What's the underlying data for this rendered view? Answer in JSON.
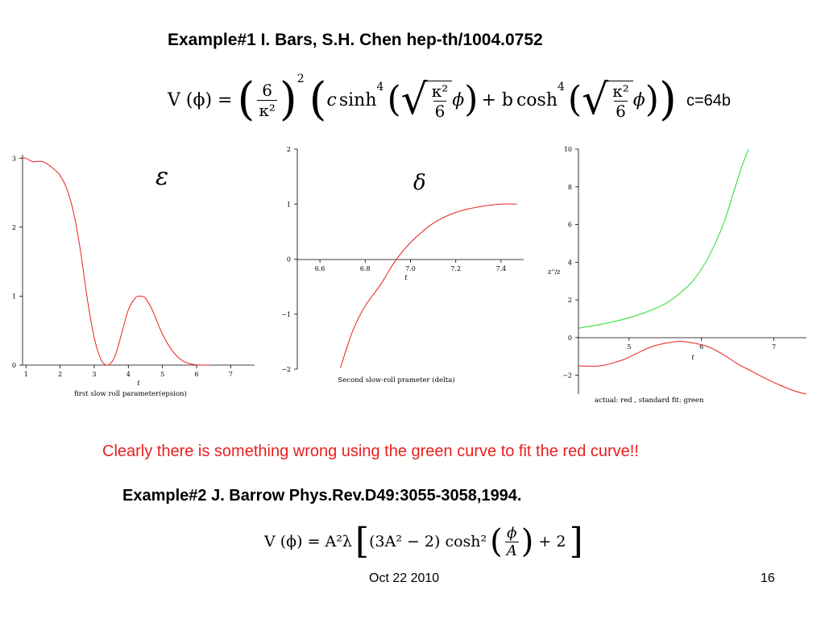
{
  "slide": {
    "heading1": "Example#1 I. Bars, S.H. Chen hep-th/1004.0752",
    "constant_note": "c=64b",
    "conclusion": "Clearly there is something wrong using the green curve to fit the red curve!!",
    "heading2": "Example#2 J. Barrow  Phys.Rev.D49:3055-3058,1994.",
    "footer_date": "Oct 22 2010",
    "page_number": "16"
  },
  "equation1": {
    "lhs": "V (ϕ) =",
    "six": "6",
    "kappa_sq": "κ²",
    "square": "2",
    "c": "c",
    "sinh": "sinh",
    "fourth": "4",
    "plus_b": "+ b",
    "cosh": "cosh",
    "phi": "ϕ"
  },
  "equation2": {
    "lhs": "V (ϕ) = A²λ",
    "inner": "(3A² − 2) cosh²",
    "phi": "ϕ",
    "A": "A",
    "plus": "+ 2"
  },
  "colors": {
    "curve_red": "#e8201e",
    "curve_green": "#22dd22",
    "axis": "#000000",
    "conclusion": "#e8201e"
  },
  "chart_data": [
    {
      "type": "line",
      "title": "ε",
      "xlabel": "t",
      "caption": "first slow roll parameter(epsion)",
      "xlim": [
        0.9,
        7.7
      ],
      "ylim": [
        0,
        3.05
      ],
      "xticks": [
        1,
        2,
        3,
        4,
        5,
        6,
        7
      ],
      "yticks": [
        0,
        1,
        2,
        3
      ],
      "grid": false,
      "series": [
        {
          "color": "#e8201e",
          "x": [
            0.9,
            1.0,
            1.2,
            1.5,
            1.8,
            2.0,
            2.2,
            2.4,
            2.6,
            2.8,
            3.0,
            3.2,
            3.4,
            3.6,
            3.8,
            4.0,
            4.2,
            4.35,
            4.5,
            4.7,
            5.0,
            5.3,
            5.6,
            5.9,
            6.2,
            6.4
          ],
          "y": [
            3.0,
            3.0,
            2.95,
            2.95,
            2.85,
            2.75,
            2.55,
            2.2,
            1.65,
            0.95,
            0.4,
            0.08,
            0.0,
            0.12,
            0.45,
            0.8,
            0.97,
            1.0,
            0.97,
            0.8,
            0.45,
            0.2,
            0.06,
            0.01,
            0.0,
            0.0
          ]
        }
      ]
    },
    {
      "type": "line",
      "title": "δ",
      "xlabel": "t",
      "caption": "Second slow-roll prameter (delta)",
      "xlim": [
        6.5,
        7.5
      ],
      "ylim": [
        -2,
        2
      ],
      "xticks": [
        6.6,
        6.8,
        7.0,
        7.2,
        7.4
      ],
      "xtick_labels": [
        "6.6",
        "6.8",
        "7.0",
        "7.2",
        "7.4"
      ],
      "yticks": [
        -2,
        -1,
        0,
        1,
        2
      ],
      "grid": false,
      "series": [
        {
          "color": "#e8201e",
          "x": [
            6.69,
            6.72,
            6.75,
            6.8,
            6.87,
            6.93,
            7.0,
            7.1,
            7.2,
            7.3,
            7.4,
            7.47
          ],
          "y": [
            -1.98,
            -1.6,
            -1.25,
            -0.85,
            -0.45,
            -0.05,
            0.3,
            0.65,
            0.85,
            0.95,
            1.0,
            1.0
          ]
        }
      ]
    },
    {
      "type": "line",
      "title": "",
      "xlabel": "t",
      "ylabel": "z''/z",
      "caption": "actual: red ,   standard fit: green",
      "xlim": [
        4.3,
        7.45
      ],
      "ylim": [
        -3,
        10
      ],
      "xticks": [
        5,
        6,
        7
      ],
      "yticks": [
        -2,
        0,
        2,
        4,
        6,
        8,
        10
      ],
      "grid": false,
      "series": [
        {
          "name": "actual",
          "color": "#e8201e",
          "x": [
            4.3,
            4.6,
            4.9,
            5.1,
            5.3,
            5.5,
            5.7,
            5.9,
            6.1,
            6.3,
            6.5,
            6.7,
            6.9,
            7.1,
            7.3,
            7.45
          ],
          "y": [
            -1.5,
            -1.5,
            -1.2,
            -0.85,
            -0.5,
            -0.3,
            -0.2,
            -0.3,
            -0.5,
            -0.9,
            -1.4,
            -1.8,
            -2.2,
            -2.55,
            -2.85,
            -3.0
          ]
        },
        {
          "name": "standard fit",
          "color": "#22dd22",
          "x": [
            4.3,
            4.6,
            4.9,
            5.2,
            5.5,
            5.7,
            5.9,
            6.1,
            6.3,
            6.45,
            6.55,
            6.65
          ],
          "y": [
            0.5,
            0.7,
            0.95,
            1.3,
            1.8,
            2.35,
            3.1,
            4.3,
            6.0,
            7.8,
            9.0,
            10.0
          ]
        }
      ]
    }
  ]
}
